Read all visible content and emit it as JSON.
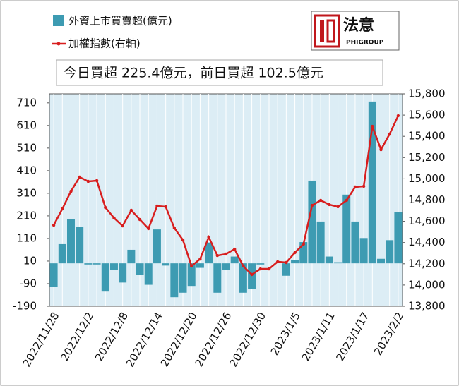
{
  "chart_data": {
    "type": "combo",
    "annotation": "今日買超 225.4億元，前日買超 102.5億元",
    "logo_text": "法意",
    "logo_subtext": "PHIGROUP",
    "categories": [
      "2022/11/28",
      null,
      null,
      null,
      "2022/12/2",
      null,
      null,
      null,
      "2022/12/8",
      null,
      null,
      null,
      "2022/12/14",
      null,
      null,
      null,
      "2022/12/20",
      null,
      null,
      null,
      "2022/12/26",
      null,
      null,
      null,
      "2022/12/30",
      null,
      null,
      null,
      "2023/1/5",
      null,
      null,
      null,
      "2023/1/11",
      null,
      null,
      null,
      "2023/1/17",
      null,
      null,
      null,
      "2023/2/2"
    ],
    "series": [
      {
        "name": "外資上市買賣超(億元)",
        "type": "bar",
        "color": "#3d9bb2",
        "values": [
          -105,
          85,
          197,
          160,
          -5,
          -5,
          -125,
          -30,
          -85,
          60,
          -50,
          -95,
          150,
          -10,
          -150,
          -130,
          -100,
          -20,
          92,
          -130,
          -30,
          30,
          -130,
          -115,
          -5,
          0,
          0,
          -55,
          15,
          94,
          366,
          185,
          30,
          5,
          304,
          185,
          112,
          716,
          20,
          102.5,
          225.4
        ]
      },
      {
        "name": "加權指數(右軸)",
        "type": "line",
        "axis": "y2",
        "color": "#d81e1e",
        "values": [
          14564,
          14717,
          14883,
          15016,
          14976,
          14983,
          14730,
          14631,
          14557,
          14704,
          14617,
          14531,
          14744,
          14737,
          14538,
          14424,
          14179,
          14245,
          14451,
          14278,
          14292,
          14338,
          14179,
          14099,
          14152,
          14152,
          14219,
          14212,
          14305,
          14385,
          14750,
          14797,
          14757,
          14737,
          14797,
          14923,
          14930,
          15494,
          15275,
          15421,
          15594
        ]
      }
    ],
    "ylim": [
      -190,
      750
    ],
    "yticks": [
      -190,
      -90,
      10,
      110,
      210,
      310,
      410,
      510,
      610,
      710
    ],
    "y2lim": [
      13800,
      15800
    ],
    "y2ticks": [
      {
        "value": 13800,
        "label": "13,800"
      },
      {
        "value": 14000,
        "label": "14,000"
      },
      {
        "value": 14200,
        "label": "14,200"
      },
      {
        "value": 14400,
        "label": "14,400"
      },
      {
        "value": 14600,
        "label": "14,600"
      },
      {
        "value": 14800,
        "label": "14,800"
      },
      {
        "value": 15000,
        "label": "15,000"
      },
      {
        "value": 15200,
        "label": "15,200"
      },
      {
        "value": 15400,
        "label": "15,400"
      },
      {
        "value": 15600,
        "label": "15,600"
      },
      {
        "value": 15800,
        "label": "15,800"
      }
    ]
  }
}
